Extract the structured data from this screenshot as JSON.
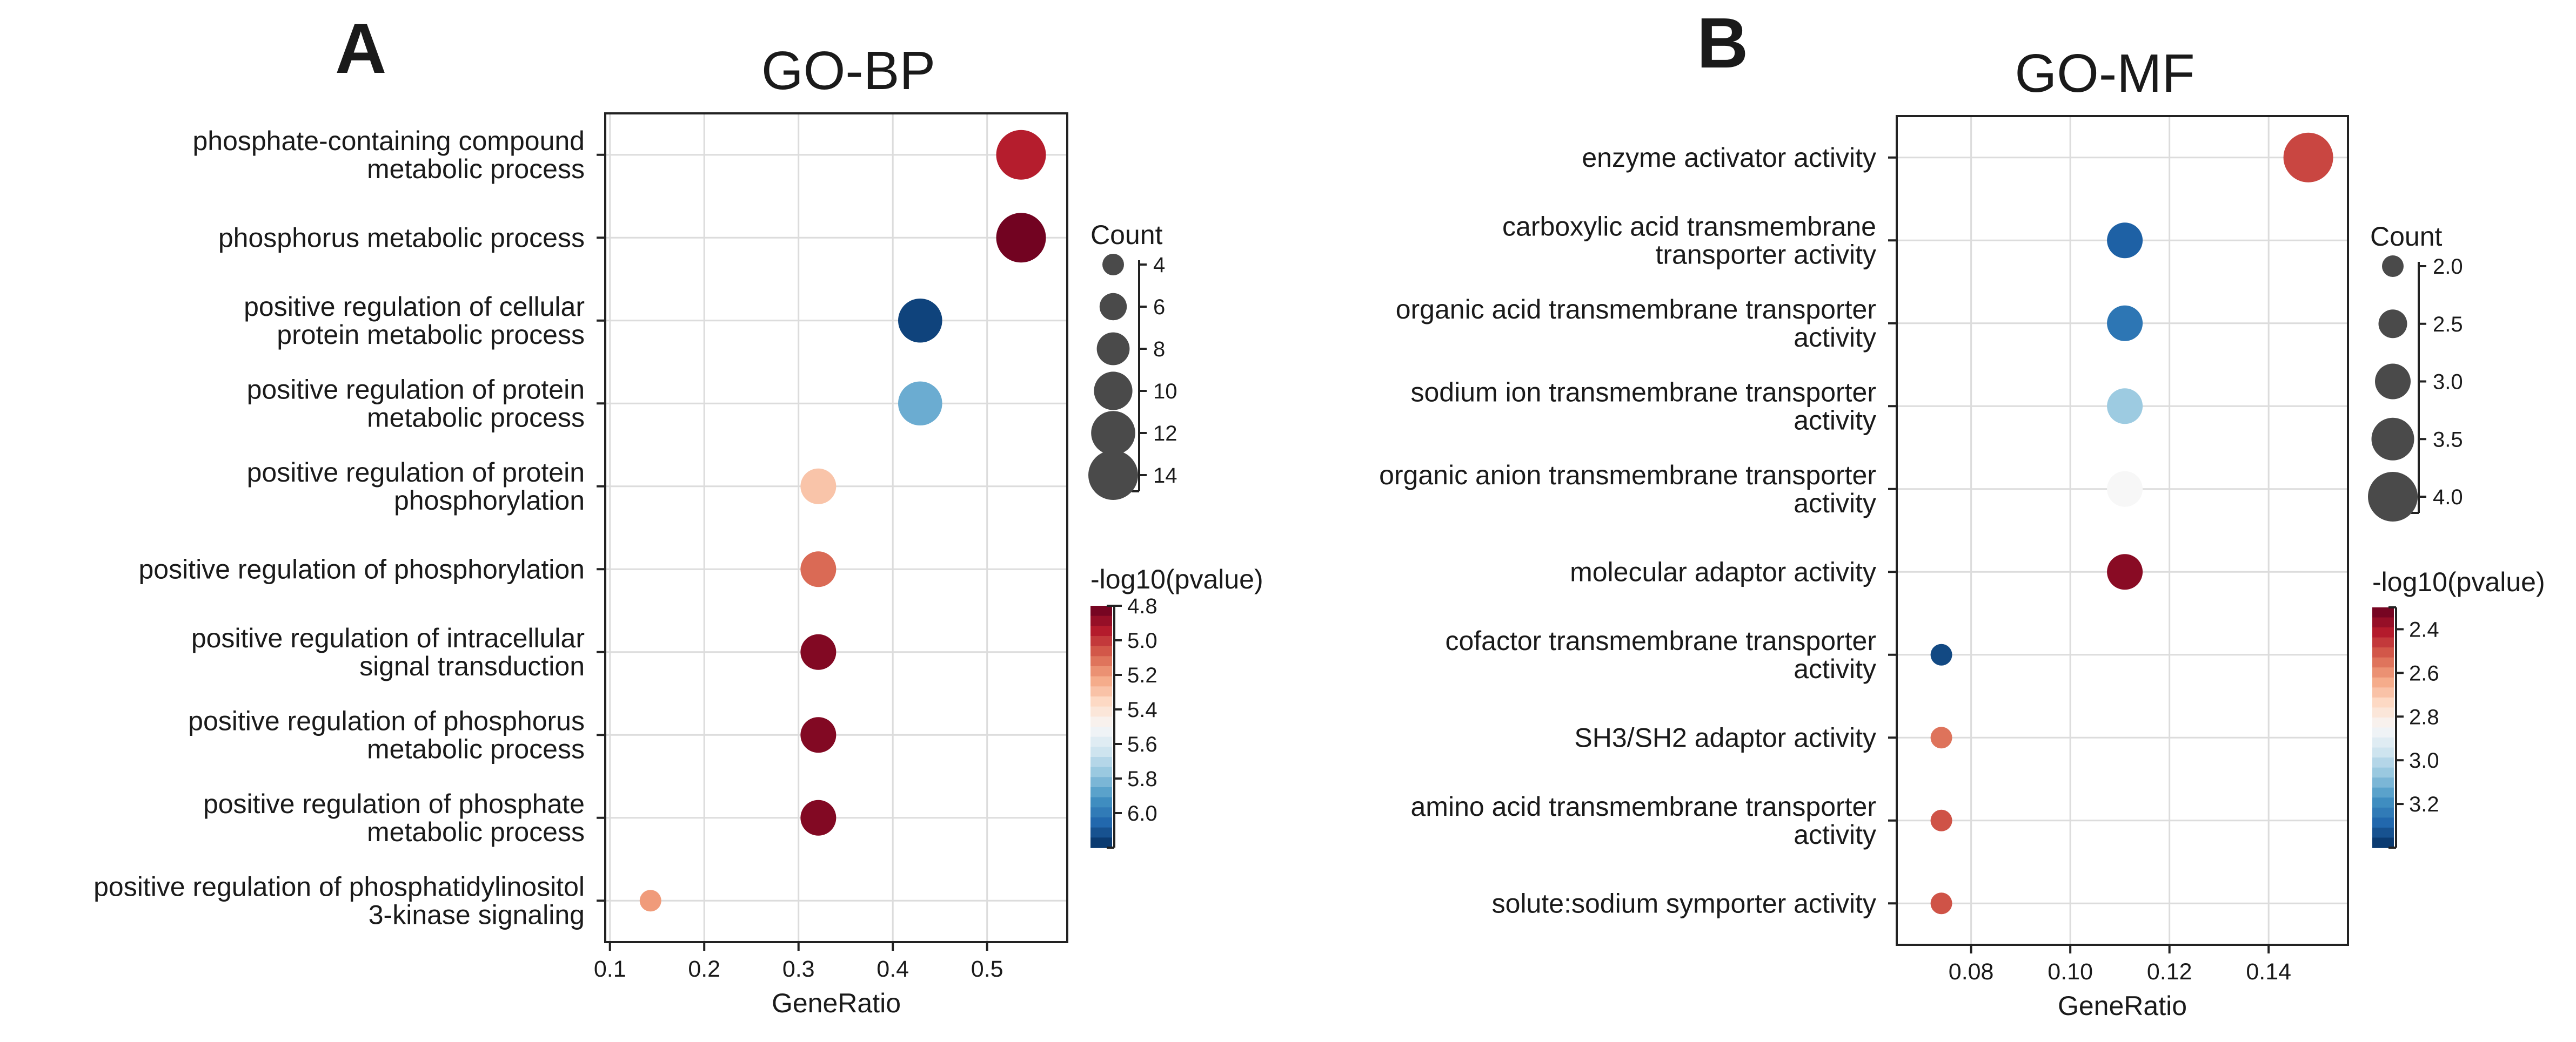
{
  "chart_data": [
    {
      "type": "scatter",
      "panel_label": "A",
      "title": "GO-BP",
      "xlabel": "GeneRatio",
      "xlim": [
        0.095,
        0.585
      ],
      "xticks": [
        "0.1",
        "0.2",
        "0.3",
        "0.4",
        "0.5"
      ],
      "grid": true,
      "categories": [
        [
          "phosphate-containing compound",
          "metabolic process"
        ],
        [
          "phosphorus metabolic process"
        ],
        [
          "positive regulation of cellular",
          "protein metabolic process"
        ],
        [
          "positive regulation of protein",
          "metabolic process"
        ],
        [
          "positive regulation of protein",
          "phosphorylation"
        ],
        [
          "positive regulation of phosphorylation"
        ],
        [
          "positive regulation of intracellular",
          "signal transduction"
        ],
        [
          "positive regulation of phosphorus",
          "metabolic process"
        ],
        [
          "positive regulation of phosphate",
          "metabolic process"
        ],
        [
          "positive regulation of phosphatidylinositol",
          "3-kinase signaling"
        ]
      ],
      "gene_ratio": [
        0.536,
        0.536,
        0.429,
        0.429,
        0.321,
        0.321,
        0.321,
        0.321,
        0.321,
        0.143
      ],
      "count": [
        15,
        15,
        12,
        12,
        9,
        9,
        9,
        9,
        9,
        4
      ],
      "neg_log10_pvalue": [
        4.95,
        4.82,
        6.15,
        5.85,
        5.3,
        5.1,
        4.85,
        4.85,
        4.85,
        5.2
      ],
      "size_legend": {
        "title": "Count",
        "values": [
          4,
          6,
          8,
          10,
          12,
          14
        ],
        "labels": [
          "4",
          "6",
          "8",
          "10",
          "12",
          "14"
        ]
      },
      "color_legend": {
        "title": "-log10(pvalue)",
        "min": 4.8,
        "max": 6.2,
        "ticks": [
          4.8,
          5.0,
          5.2,
          5.4,
          5.6,
          5.8,
          6.0
        ],
        "labels": [
          "4.8",
          "5.0",
          "5.2",
          "5.4",
          "5.6",
          "5.8",
          "6.0"
        ]
      }
    },
    {
      "type": "scatter",
      "panel_label": "B",
      "title": "GO-MF",
      "xlabel": "GeneRatio",
      "xlim": [
        0.065,
        0.156
      ],
      "xticks": [
        "0.08",
        "0.10",
        "0.12",
        "0.14"
      ],
      "grid": true,
      "categories": [
        [
          "enzyme activator activity"
        ],
        [
          "carboxylic acid transmembrane",
          "transporter activity"
        ],
        [
          "organic acid transmembrane transporter",
          "activity"
        ],
        [
          "sodium ion transmembrane transporter",
          "activity"
        ],
        [
          "organic anion transmembrane transporter",
          "activity"
        ],
        [
          "molecular adaptor activity"
        ],
        [
          "cofactor transmembrane transporter",
          "activity"
        ],
        [
          "SH3/SH2 adaptor activity"
        ],
        [
          "amino acid transmembrane transporter",
          "activity"
        ],
        [
          "solute:sodium symporter activity"
        ]
      ],
      "gene_ratio": [
        0.148,
        0.111,
        0.111,
        0.111,
        0.111,
        0.111,
        0.074,
        0.074,
        0.074,
        0.074
      ],
      "count": [
        4,
        3,
        3,
        3,
        3,
        3,
        2,
        2,
        2,
        2
      ],
      "neg_log10_pvalue": [
        2.48,
        3.3,
        3.25,
        3.05,
        2.85,
        2.35,
        3.35,
        2.55,
        2.5,
        2.5
      ],
      "size_legend": {
        "title": "Count",
        "values": [
          2.0,
          2.5,
          3.0,
          3.5,
          4.0
        ],
        "labels": [
          "2.0",
          "2.5",
          "3.0",
          "3.5",
          "4.0"
        ]
      },
      "color_legend": {
        "title": "-log10(pvalue)",
        "min": 2.3,
        "max": 3.4,
        "ticks": [
          2.4,
          2.6,
          2.8,
          3.0,
          3.2
        ],
        "labels": [
          "2.4",
          "2.6",
          "2.8",
          "3.0",
          "3.2"
        ]
      }
    }
  ],
  "colorscale": [
    "#67001f",
    "#b2182b",
    "#d6604d",
    "#f4a582",
    "#fddbc7",
    "#f7f7f7",
    "#d1e5f0",
    "#92c5de",
    "#4393c3",
    "#2166ac",
    "#053061"
  ],
  "point_color": "#4a4a4a",
  "grid_color": "#dcdcdc"
}
